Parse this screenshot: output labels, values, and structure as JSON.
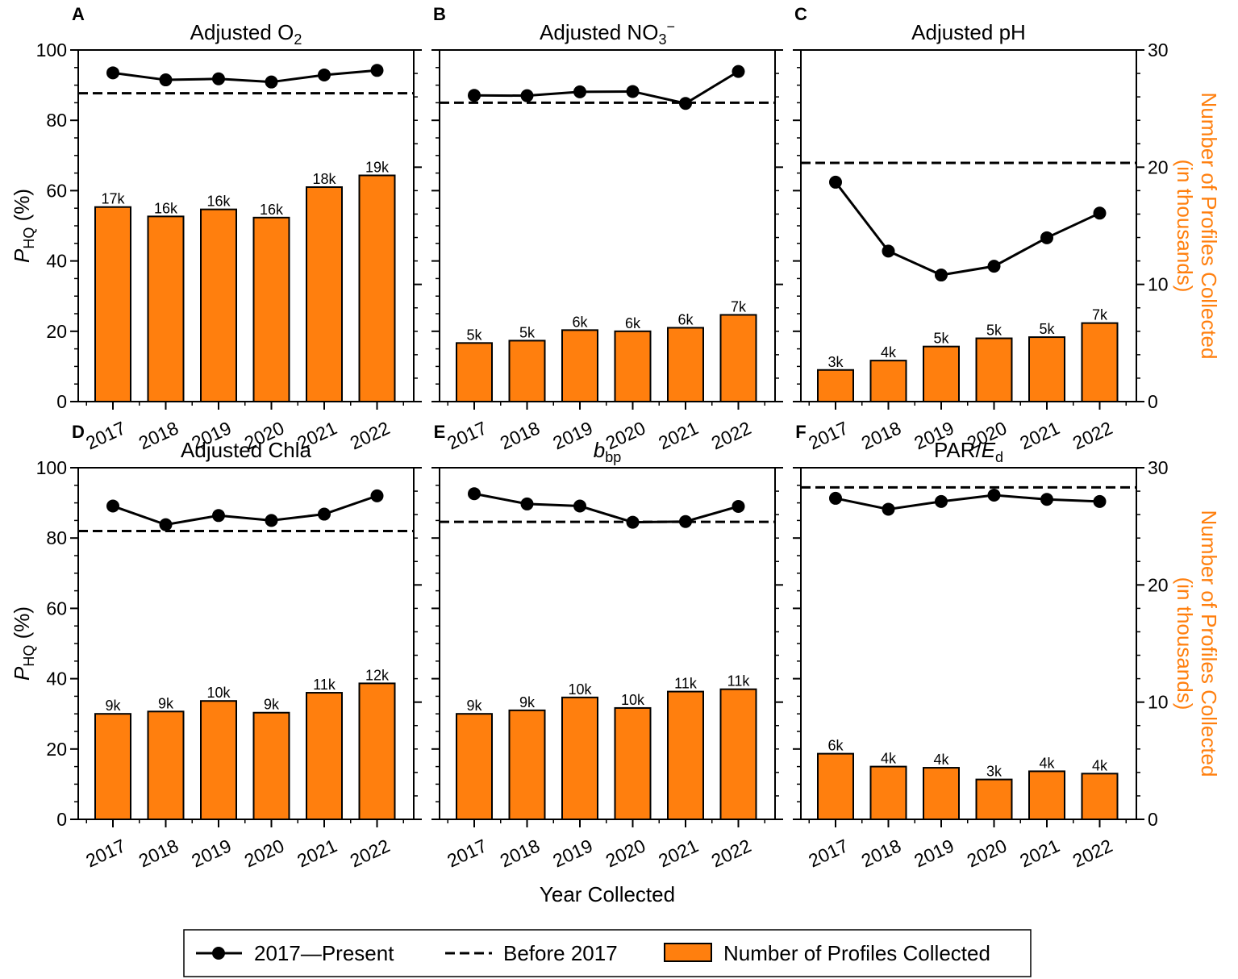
{
  "figure": {
    "xlabel": "Year Collected",
    "ylabel_main": "P",
    "ylabel_sub": "HQ",
    "ylabel_suffix": " (%)",
    "y2label_line1": "Number of Profiles Collected",
    "y2label_line2": "(in thousands)",
    "colors": {
      "bar": "#ff7f0e",
      "line": "#000000",
      "y2label": "#ff7f0e"
    }
  },
  "legend": {
    "line_label": "2017—Present",
    "dashed_label": "Before 2017",
    "bar_label": "Number of Profiles Collected"
  },
  "chart_data": [
    {
      "type": "bar+line",
      "letter": "A",
      "title_main": "Adjusted O",
      "title_sub": "2",
      "title_sup": "",
      "title_italic_part": "",
      "title_after": "",
      "categories": [
        "2017",
        "2018",
        "2019",
        "2020",
        "2021",
        "2022"
      ],
      "bar_values": [
        16.6,
        15.8,
        16.4,
        15.7,
        18.3,
        19.3
      ],
      "bar_labels": [
        "17k",
        "16k",
        "16k",
        "16k",
        "18k",
        "19k"
      ],
      "line_values": [
        93.5,
        91.5,
        91.8,
        90.9,
        92.9,
        94.2
      ],
      "before_2017": 87.7,
      "ylim": [
        0,
        100
      ],
      "y2lim": [
        0,
        30
      ]
    },
    {
      "type": "bar+line",
      "letter": "B",
      "title_main": "Adjusted NO",
      "title_sub": "3",
      "title_sup": "−",
      "title_italic_part": "",
      "title_after": "",
      "categories": [
        "2017",
        "2018",
        "2019",
        "2020",
        "2021",
        "2022"
      ],
      "bar_values": [
        5.0,
        5.2,
        6.1,
        6.0,
        6.3,
        7.4
      ],
      "bar_labels": [
        "5k",
        "5k",
        "6k",
        "6k",
        "6k",
        "7k"
      ],
      "line_values": [
        87.1,
        87.0,
        88.1,
        88.2,
        84.8,
        93.9
      ],
      "before_2017": 85.0,
      "ylim": [
        0,
        100
      ],
      "y2lim": [
        0,
        30
      ]
    },
    {
      "type": "bar+line",
      "letter": "C",
      "title_main": "Adjusted pH",
      "title_sub": "",
      "title_sup": "",
      "title_italic_part": "",
      "title_after": "",
      "categories": [
        "2017",
        "2018",
        "2019",
        "2020",
        "2021",
        "2022"
      ],
      "bar_values": [
        2.7,
        3.5,
        4.7,
        5.4,
        5.5,
        6.7
      ],
      "bar_labels": [
        "3k",
        "4k",
        "5k",
        "5k",
        "5k",
        "7k"
      ],
      "line_values": [
        62.4,
        42.8,
        36.0,
        38.5,
        46.6,
        53.6
      ],
      "before_2017": 67.9,
      "ylim": [
        0,
        100
      ],
      "y2lim": [
        0,
        30
      ]
    },
    {
      "type": "bar+line",
      "letter": "D",
      "title_main": "Adjusted Chla",
      "title_sub": "",
      "title_sup": "",
      "title_italic_part": "",
      "title_after": "",
      "categories": [
        "2017",
        "2018",
        "2019",
        "2020",
        "2021",
        "2022"
      ],
      "bar_values": [
        9.0,
        9.2,
        10.1,
        9.1,
        10.8,
        11.6
      ],
      "bar_labels": [
        "9k",
        "9k",
        "10k",
        "9k",
        "11k",
        "12k"
      ],
      "line_values": [
        89.1,
        83.8,
        86.4,
        85.0,
        86.8,
        92.0
      ],
      "before_2017": 82.0,
      "ylim": [
        0,
        100
      ],
      "y2lim": [
        0,
        30
      ]
    },
    {
      "type": "bar+line",
      "letter": "E",
      "title_main": "",
      "title_sub": "bp",
      "title_sup": "",
      "title_italic_part": "b",
      "title_after": "",
      "categories": [
        "2017",
        "2018",
        "2019",
        "2020",
        "2021",
        "2022"
      ],
      "bar_values": [
        9.0,
        9.3,
        10.4,
        9.5,
        10.9,
        11.1
      ],
      "bar_labels": [
        "9k",
        "9k",
        "10k",
        "10k",
        "11k",
        "11k"
      ],
      "line_values": [
        92.6,
        89.7,
        89.1,
        84.5,
        84.7,
        89.0
      ],
      "before_2017": 84.6,
      "ylim": [
        0,
        100
      ],
      "y2lim": [
        0,
        30
      ]
    },
    {
      "type": "bar+line",
      "letter": "F",
      "title_main": "PAR/",
      "title_sub": "d",
      "title_sup": "",
      "title_italic_part": "E",
      "title_after": "",
      "categories": [
        "2017",
        "2018",
        "2019",
        "2020",
        "2021",
        "2022"
      ],
      "bar_values": [
        5.6,
        4.5,
        4.4,
        3.4,
        4.1,
        3.9
      ],
      "bar_labels": [
        "6k",
        "4k",
        "4k",
        "3k",
        "4k",
        "4k"
      ],
      "line_values": [
        91.3,
        88.2,
        90.4,
        92.2,
        91.0,
        90.4
      ],
      "before_2017": 94.4,
      "ylim": [
        0,
        100
      ],
      "y2lim": [
        0,
        30
      ]
    }
  ]
}
